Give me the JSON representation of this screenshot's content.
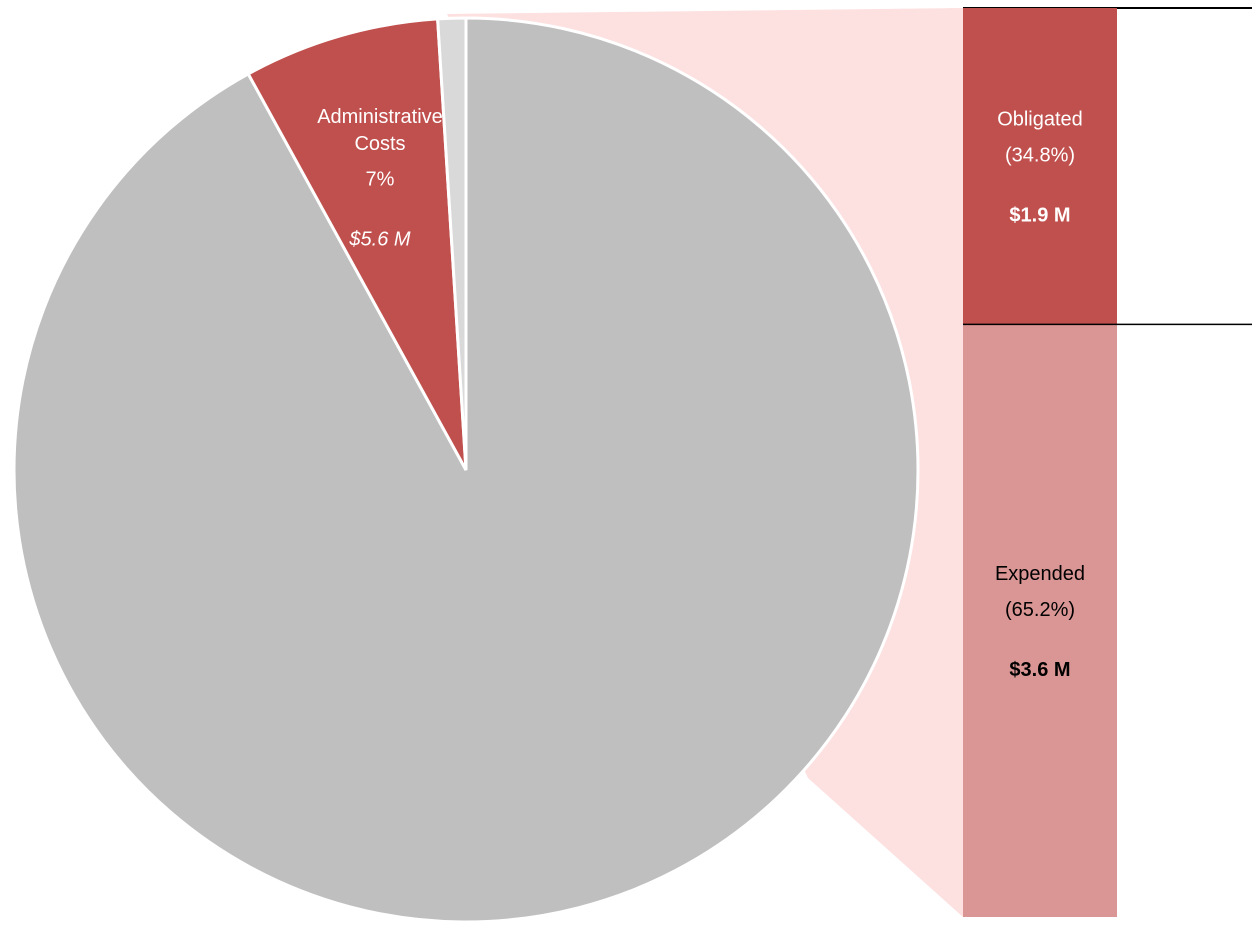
{
  "chart_data": {
    "type": "pie-of-bar",
    "pie": {
      "categories": [
        null,
        "Administrative Costs",
        null
      ],
      "values": [
        92,
        7,
        1
      ],
      "value_labels": [
        null,
        "7%",
        null
      ],
      "amounts": [
        null,
        "$5.6 M",
        null
      ],
      "colors": [
        "#bfbfbf",
        "#c0504d",
        "#d9d9d9"
      ]
    },
    "bar": {
      "categories": [
        "Obligated",
        "Expended"
      ],
      "values": [
        34.8,
        65.2
      ],
      "value_labels": [
        "(34.8%)",
        "(65.2%)"
      ],
      "amounts": [
        "$1.9 M",
        "$3.6 M"
      ],
      "colors": [
        "#c0504d",
        "#d99694"
      ]
    }
  }
}
